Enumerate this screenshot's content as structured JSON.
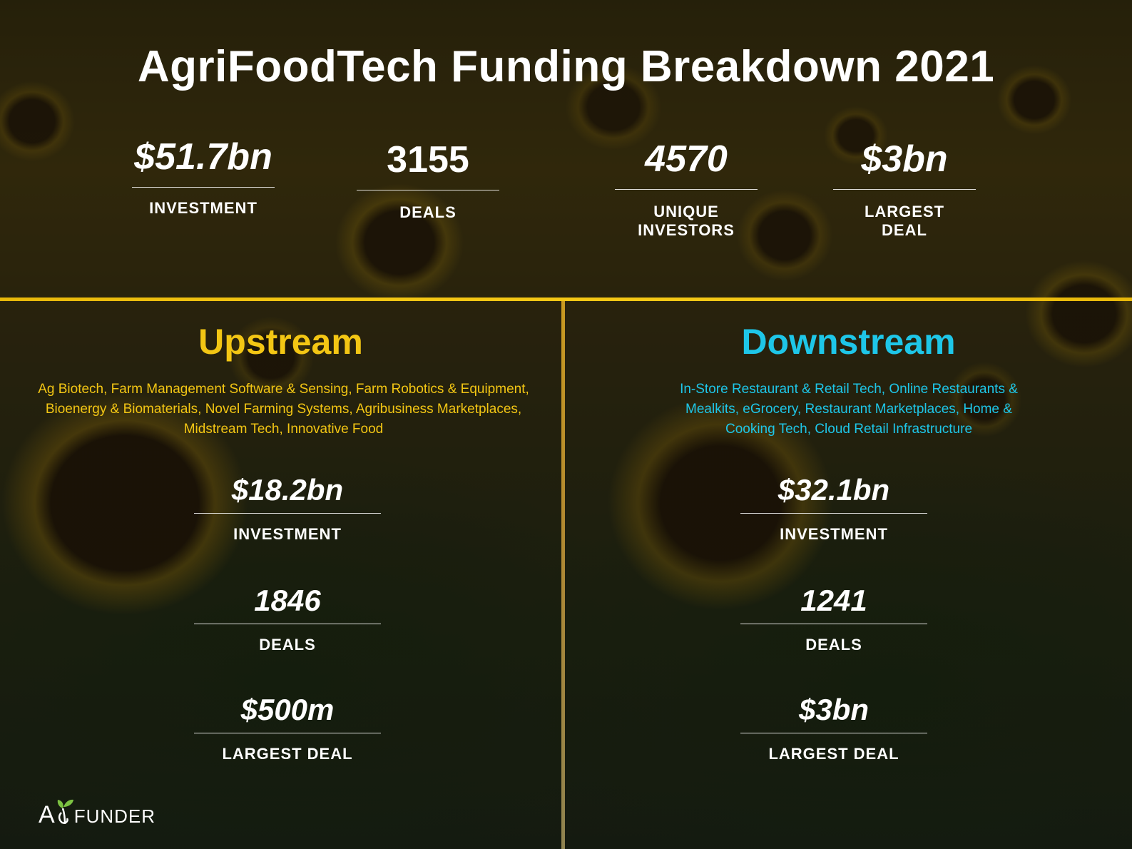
{
  "title": "AgriFoodTech Funding Breakdown 2021",
  "top_stats": [
    {
      "value": "$51.7bn",
      "label": "INVESTMENT"
    },
    {
      "value": "3155",
      "label": "DEALS"
    },
    {
      "value": "4570",
      "label": "UNIQUE\nINVESTORS"
    },
    {
      "value": "$3bn",
      "label": "LARGEST\nDEAL"
    }
  ],
  "upstream": {
    "title": "Upstream",
    "description": "Ag Biotech, Farm Management Software & Sensing, Farm Robotics & Equipment, Bioenergy & Biomaterials, Novel Farming Systems, Agribusiness Marketplaces, Midstream Tech, Innovative Food",
    "stats": [
      {
        "value": "$18.2bn",
        "label": "INVESTMENT"
      },
      {
        "value": "1846",
        "label": "DEALS"
      },
      {
        "value": "$500m",
        "label": "LARGEST DEAL"
      }
    ]
  },
  "downstream": {
    "title": "Downstream",
    "description": "In-Store Restaurant & Retail Tech, Online Restaurants & Mealkits, eGrocery, Restaurant Marketplaces, Home & Cooking Tech, Cloud Retail Infrastructure",
    "stats": [
      {
        "value": "$32.1bn",
        "label": "INVESTMENT"
      },
      {
        "value": "1241",
        "label": "DEALS"
      },
      {
        "value": "$3bn",
        "label": "LARGEST DEAL"
      }
    ]
  },
  "logo": {
    "text_a": "A",
    "text_rest": "FUNDER"
  },
  "colors": {
    "upstream": "#f3c614",
    "downstream": "#1ec6e8",
    "divider": "#f3c614"
  }
}
